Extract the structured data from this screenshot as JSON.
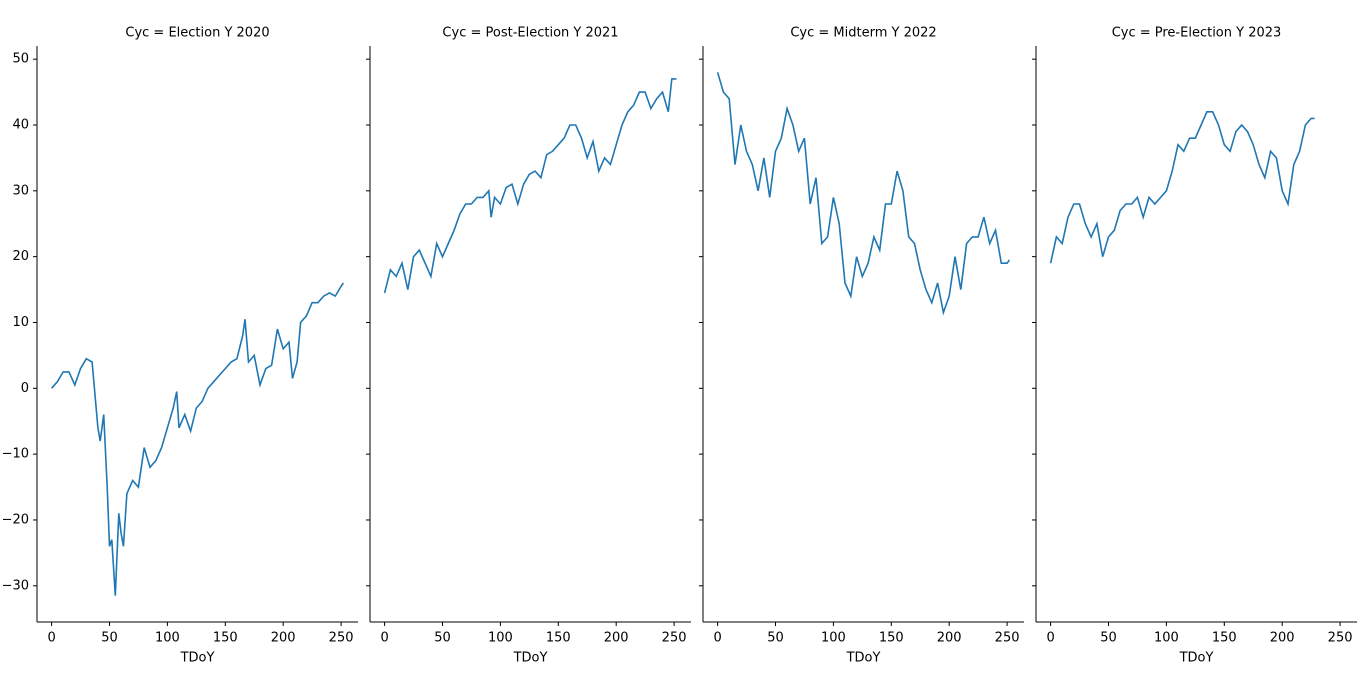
{
  "chart_data": [
    {
      "type": "line",
      "title": "Cyc = Election Y 2020",
      "x_label": "TDoY",
      "color": "#1f77b4",
      "x": [
        0,
        5,
        10,
        15,
        20,
        25,
        30,
        35,
        40,
        42,
        45,
        48,
        50,
        52,
        55,
        58,
        60,
        62,
        65,
        70,
        75,
        80,
        85,
        90,
        95,
        100,
        105,
        108,
        110,
        115,
        120,
        125,
        130,
        135,
        140,
        145,
        150,
        155,
        160,
        165,
        167,
        170,
        175,
        180,
        185,
        190,
        195,
        200,
        205,
        208,
        212,
        215,
        220,
        225,
        230,
        235,
        240,
        245,
        250,
        252
      ],
      "values": [
        0,
        1,
        2.5,
        2.5,
        0.5,
        3,
        4.5,
        4,
        -6,
        -8,
        -4,
        -15,
        -24,
        -23,
        -31.5,
        -19,
        -22,
        -24,
        -16,
        -14,
        -15,
        -9,
        -12,
        -11,
        -9,
        -6,
        -3,
        -0.5,
        -6,
        -4,
        -6.5,
        -3,
        -2,
        0,
        1,
        2,
        3,
        4,
        4.5,
        8,
        10.5,
        4,
        5,
        0.5,
        3,
        3.5,
        9,
        6,
        7,
        1.5,
        4,
        10,
        11,
        13,
        13,
        14,
        14.5,
        14,
        15.5,
        16
      ],
      "xlim": [
        -12.6,
        264.6
      ],
      "ylim": [
        -35.5,
        52
      ],
      "xticks": [
        0,
        50,
        100,
        150,
        200,
        250
      ],
      "yticks": [
        {
          "value": -30,
          "label": "−30"
        },
        {
          "value": -20,
          "label": "−20"
        },
        {
          "value": -10,
          "label": "−10"
        },
        0,
        10,
        20,
        30,
        40,
        50
      ]
    },
    {
      "type": "line",
      "title": "Cyc = Post-Election Y 2021",
      "x_label": "TDoY",
      "color": "#1f77b4",
      "x": [
        0,
        5,
        10,
        15,
        20,
        25,
        30,
        35,
        40,
        45,
        50,
        55,
        60,
        65,
        70,
        75,
        80,
        85,
        90,
        92,
        95,
        100,
        105,
        110,
        115,
        120,
        125,
        130,
        135,
        140,
        145,
        150,
        155,
        160,
        165,
        170,
        175,
        180,
        185,
        190,
        195,
        200,
        205,
        210,
        215,
        220,
        225,
        230,
        235,
        240,
        245,
        248,
        252
      ],
      "values": [
        14.5,
        18,
        17,
        19,
        15,
        20,
        21,
        19,
        17,
        22,
        20,
        22,
        24,
        26.5,
        28,
        28,
        29,
        29,
        30,
        26,
        29,
        28,
        30.5,
        31,
        28,
        31,
        32.5,
        33,
        32,
        35.5,
        36,
        37,
        38,
        40,
        40,
        38,
        35,
        37.5,
        33,
        35,
        34,
        37,
        40,
        42,
        43,
        45,
        45,
        42.5,
        44,
        45,
        42,
        47,
        47
      ],
      "xlim": [
        -12.6,
        264.6
      ],
      "ylim": [
        -35.5,
        52
      ],
      "xticks": [
        0,
        50,
        100,
        150,
        200,
        250
      ],
      "yticks": [
        -30,
        -20,
        -10,
        0,
        10,
        20,
        30,
        40,
        50
      ]
    },
    {
      "type": "line",
      "title": "Cyc = Midterm Y 2022",
      "x_label": "TDoY",
      "color": "#1f77b4",
      "x": [
        0,
        5,
        10,
        15,
        20,
        25,
        30,
        35,
        40,
        45,
        50,
        55,
        60,
        65,
        70,
        75,
        80,
        85,
        90,
        95,
        100,
        105,
        110,
        115,
        120,
        125,
        130,
        135,
        140,
        145,
        150,
        155,
        160,
        165,
        170,
        175,
        180,
        185,
        190,
        195,
        200,
        205,
        210,
        215,
        220,
        225,
        230,
        235,
        240,
        245,
        250,
        252
      ],
      "values": [
        48,
        45,
        44,
        34,
        40,
        36,
        34,
        30,
        35,
        29,
        36,
        38,
        42.5,
        40,
        36,
        38,
        28,
        32,
        22,
        23,
        29,
        25,
        16,
        14,
        20,
        17,
        19,
        23,
        21,
        28,
        28,
        33,
        30,
        23,
        22,
        18,
        15,
        13,
        16,
        11.5,
        14,
        20,
        15,
        22,
        23,
        23,
        26,
        22,
        24,
        19,
        19,
        19.5
      ],
      "xlim": [
        -12.6,
        264.6
      ],
      "ylim": [
        -35.5,
        52
      ],
      "xticks": [
        0,
        50,
        100,
        150,
        200,
        250
      ],
      "yticks": [
        -30,
        -20,
        -10,
        0,
        10,
        20,
        30,
        40,
        50
      ]
    },
    {
      "type": "line",
      "title": "Cyc = Pre-Election Y 2023",
      "x_label": "TDoY",
      "color": "#1f77b4",
      "x": [
        0,
        5,
        10,
        15,
        20,
        25,
        30,
        35,
        40,
        45,
        50,
        55,
        60,
        65,
        70,
        75,
        80,
        85,
        90,
        95,
        100,
        105,
        110,
        115,
        120,
        125,
        130,
        135,
        140,
        145,
        150,
        155,
        160,
        165,
        170,
        175,
        180,
        185,
        190,
        195,
        200,
        205,
        210,
        215,
        220,
        225,
        228
      ],
      "values": [
        19,
        23,
        22,
        26,
        28,
        28,
        25,
        23,
        25,
        20,
        23,
        24,
        27,
        28,
        28,
        29,
        26,
        29,
        28,
        29,
        30,
        33,
        37,
        36,
        38,
        38,
        40,
        42,
        42,
        40,
        37,
        36,
        39,
        40,
        39,
        37,
        34,
        32,
        36,
        35,
        30,
        28,
        34,
        36,
        40,
        41,
        41
      ],
      "xlim": [
        -12.6,
        264.6
      ],
      "ylim": [
        -35.5,
        52
      ],
      "xticks": [
        0,
        50,
        100,
        150,
        200,
        250
      ],
      "yticks": [
        -30,
        -20,
        -10,
        0,
        10,
        20,
        30,
        40,
        50
      ]
    }
  ]
}
